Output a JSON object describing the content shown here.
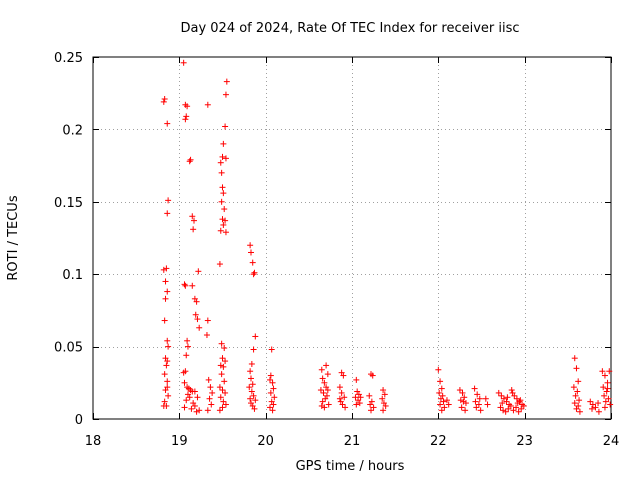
{
  "chart_data": {
    "type": "scatter",
    "title": "Day 024 of 2024, Rate Of TEC Index for receiver iisc",
    "xlabel": "GPS time / hours",
    "ylabel": "ROTI / TECUs",
    "xlim": [
      18,
      24
    ],
    "ylim": [
      0,
      0.25
    ],
    "x_ticks": [
      18,
      19,
      20,
      21,
      22,
      23,
      24
    ],
    "y_ticks": [
      0,
      0.05,
      0.1,
      0.15,
      0.2,
      0.25
    ],
    "x_tick_labels": [
      "18",
      "19",
      "20",
      "21",
      "22",
      "23",
      "24"
    ],
    "y_tick_labels": [
      "0",
      "0.05",
      "0.1",
      "0.15",
      "0.2",
      "0.25"
    ],
    "grid": true,
    "marker": "+",
    "marker_color": "#ff0000",
    "series": [
      {
        "name": "ROTI",
        "points": [
          [
            18.82,
            0.219
          ],
          [
            18.83,
            0.221
          ],
          [
            18.86,
            0.204
          ],
          [
            18.87,
            0.151
          ],
          [
            18.86,
            0.142
          ],
          [
            18.82,
            0.103
          ],
          [
            18.85,
            0.104
          ],
          [
            18.84,
            0.095
          ],
          [
            18.86,
            0.088
          ],
          [
            18.84,
            0.083
          ],
          [
            18.83,
            0.068
          ],
          [
            18.86,
            0.054
          ],
          [
            18.87,
            0.05
          ],
          [
            18.84,
            0.042
          ],
          [
            18.86,
            0.04
          ],
          [
            18.85,
            0.037
          ],
          [
            18.83,
            0.031
          ],
          [
            18.86,
            0.026
          ],
          [
            18.84,
            0.02
          ],
          [
            18.87,
            0.016
          ],
          [
            18.83,
            0.012
          ],
          [
            18.85,
            0.009
          ],
          [
            18.82,
            0.009
          ],
          [
            18.86,
            0.022
          ],
          [
            19.05,
            0.246
          ],
          [
            19.07,
            0.217
          ],
          [
            19.09,
            0.216
          ],
          [
            19.08,
            0.209
          ],
          [
            19.07,
            0.207
          ],
          [
            19.13,
            0.179
          ],
          [
            19.12,
            0.178
          ],
          [
            19.15,
            0.14
          ],
          [
            19.17,
            0.137
          ],
          [
            19.16,
            0.131
          ],
          [
            19.22,
            0.102
          ],
          [
            19.06,
            0.093
          ],
          [
            19.07,
            0.092
          ],
          [
            19.15,
            0.092
          ],
          [
            19.18,
            0.083
          ],
          [
            19.2,
            0.081
          ],
          [
            19.19,
            0.072
          ],
          [
            19.21,
            0.069
          ],
          [
            19.23,
            0.063
          ],
          [
            19.09,
            0.054
          ],
          [
            19.1,
            0.05
          ],
          [
            19.08,
            0.044
          ],
          [
            19.07,
            0.033
          ],
          [
            19.05,
            0.032
          ],
          [
            19.06,
            0.025
          ],
          [
            19.09,
            0.022
          ],
          [
            19.11,
            0.021
          ],
          [
            19.13,
            0.02
          ],
          [
            19.15,
            0.019
          ],
          [
            19.18,
            0.019
          ],
          [
            19.1,
            0.017
          ],
          [
            19.12,
            0.015
          ],
          [
            19.08,
            0.013
          ],
          [
            19.16,
            0.011
          ],
          [
            19.14,
            0.007
          ],
          [
            19.2,
            0.005
          ],
          [
            19.23,
            0.006
          ],
          [
            19.18,
            0.009
          ],
          [
            19.06,
            0.008
          ],
          [
            19.21,
            0.015
          ],
          [
            19.33,
            0.217
          ],
          [
            19.33,
            0.068
          ],
          [
            19.32,
            0.058
          ],
          [
            19.34,
            0.027
          ],
          [
            19.36,
            0.022
          ],
          [
            19.38,
            0.018
          ],
          [
            19.35,
            0.014
          ],
          [
            19.37,
            0.01
          ],
          [
            19.33,
            0.006
          ],
          [
            19.55,
            0.233
          ],
          [
            19.54,
            0.224
          ],
          [
            19.53,
            0.202
          ],
          [
            19.51,
            0.19
          ],
          [
            19.5,
            0.181
          ],
          [
            19.54,
            0.18
          ],
          [
            19.48,
            0.177
          ],
          [
            19.49,
            0.17
          ],
          [
            19.5,
            0.16
          ],
          [
            19.51,
            0.156
          ],
          [
            19.49,
            0.15
          ],
          [
            19.52,
            0.145
          ],
          [
            19.5,
            0.138
          ],
          [
            19.51,
            0.134
          ],
          [
            19.53,
            0.137
          ],
          [
            19.48,
            0.13
          ],
          [
            19.54,
            0.129
          ],
          [
            19.47,
            0.107
          ],
          [
            19.49,
            0.052
          ],
          [
            19.52,
            0.049
          ],
          [
            19.5,
            0.042
          ],
          [
            19.53,
            0.04
          ],
          [
            19.48,
            0.037
          ],
          [
            19.51,
            0.036
          ],
          [
            19.49,
            0.031
          ],
          [
            19.52,
            0.026
          ],
          [
            19.47,
            0.022
          ],
          [
            19.5,
            0.02
          ],
          [
            19.53,
            0.018
          ],
          [
            19.48,
            0.015
          ],
          [
            19.51,
            0.012
          ],
          [
            19.54,
            0.01
          ],
          [
            19.5,
            0.008
          ],
          [
            19.47,
            0.006
          ],
          [
            19.82,
            0.12
          ],
          [
            19.83,
            0.115
          ],
          [
            19.85,
            0.108
          ],
          [
            19.86,
            0.1
          ],
          [
            19.87,
            0.101
          ],
          [
            19.88,
            0.057
          ],
          [
            19.86,
            0.048
          ],
          [
            19.84,
            0.038
          ],
          [
            19.82,
            0.033
          ],
          [
            19.83,
            0.028
          ],
          [
            19.85,
            0.024
          ],
          [
            19.81,
            0.022
          ],
          [
            19.84,
            0.019
          ],
          [
            19.86,
            0.016
          ],
          [
            19.88,
            0.013
          ],
          [
            19.83,
            0.011
          ],
          [
            19.85,
            0.009
          ],
          [
            19.87,
            0.007
          ],
          [
            19.82,
            0.014
          ],
          [
            20.07,
            0.048
          ],
          [
            20.06,
            0.03
          ],
          [
            20.05,
            0.027
          ],
          [
            20.08,
            0.025
          ],
          [
            20.09,
            0.021
          ],
          [
            20.06,
            0.018
          ],
          [
            20.1,
            0.015
          ],
          [
            20.07,
            0.012
          ],
          [
            20.09,
            0.01
          ],
          [
            20.05,
            0.008
          ],
          [
            20.08,
            0.006
          ],
          [
            20.65,
            0.034
          ],
          [
            20.7,
            0.037
          ],
          [
            20.72,
            0.031
          ],
          [
            20.66,
            0.028
          ],
          [
            20.68,
            0.025
          ],
          [
            20.7,
            0.022
          ],
          [
            20.64,
            0.02
          ],
          [
            20.67,
            0.018
          ],
          [
            20.71,
            0.016
          ],
          [
            20.69,
            0.014
          ],
          [
            20.66,
            0.012
          ],
          [
            20.73,
            0.01
          ],
          [
            20.68,
            0.008
          ],
          [
            20.65,
            0.009
          ],
          [
            20.72,
            0.02
          ],
          [
            20.88,
            0.032
          ],
          [
            20.9,
            0.03
          ],
          [
            20.86,
            0.022
          ],
          [
            20.88,
            0.018
          ],
          [
            20.91,
            0.015
          ],
          [
            20.87,
            0.012
          ],
          [
            20.89,
            0.01
          ],
          [
            20.92,
            0.008
          ],
          [
            20.86,
            0.014
          ],
          [
            21.05,
            0.027
          ],
          [
            21.06,
            0.019
          ],
          [
            21.08,
            0.017
          ],
          [
            21.04,
            0.015
          ],
          [
            21.07,
            0.013
          ],
          [
            21.09,
            0.011
          ],
          [
            21.05,
            0.01
          ],
          [
            21.1,
            0.015
          ],
          [
            21.22,
            0.031
          ],
          [
            21.24,
            0.03
          ],
          [
            21.2,
            0.016
          ],
          [
            21.23,
            0.012
          ],
          [
            21.21,
            0.01
          ],
          [
            21.25,
            0.008
          ],
          [
            21.22,
            0.006
          ],
          [
            21.36,
            0.02
          ],
          [
            21.38,
            0.017
          ],
          [
            21.35,
            0.014
          ],
          [
            21.37,
            0.011
          ],
          [
            21.39,
            0.009
          ],
          [
            21.36,
            0.006
          ],
          [
            22.0,
            0.034
          ],
          [
            22.02,
            0.026
          ],
          [
            22.04,
            0.021
          ],
          [
            22.01,
            0.018
          ],
          [
            22.05,
            0.016
          ],
          [
            22.03,
            0.014
          ],
          [
            22.06,
            0.012
          ],
          [
            22.02,
            0.01
          ],
          [
            22.07,
            0.008
          ],
          [
            22.04,
            0.006
          ],
          [
            22.1,
            0.013
          ],
          [
            22.12,
            0.01
          ],
          [
            22.25,
            0.02
          ],
          [
            22.28,
            0.018
          ],
          [
            22.3,
            0.015
          ],
          [
            22.26,
            0.013
          ],
          [
            22.32,
            0.011
          ],
          [
            22.27,
            0.008
          ],
          [
            22.31,
            0.006
          ],
          [
            22.29,
            0.012
          ],
          [
            22.42,
            0.021
          ],
          [
            22.45,
            0.017
          ],
          [
            22.48,
            0.014
          ],
          [
            22.43,
            0.012
          ],
          [
            22.47,
            0.01
          ],
          [
            22.44,
            0.008
          ],
          [
            22.49,
            0.006
          ],
          [
            22.55,
            0.014
          ],
          [
            22.57,
            0.01
          ],
          [
            22.7,
            0.018
          ],
          [
            22.73,
            0.016
          ],
          [
            22.76,
            0.014
          ],
          [
            22.79,
            0.012
          ],
          [
            22.82,
            0.01
          ],
          [
            22.85,
            0.02
          ],
          [
            22.88,
            0.016
          ],
          [
            22.91,
            0.014
          ],
          [
            22.94,
            0.012
          ],
          [
            22.97,
            0.01
          ],
          [
            22.72,
            0.008
          ],
          [
            22.75,
            0.006
          ],
          [
            22.78,
            0.005
          ],
          [
            22.81,
            0.007
          ],
          [
            22.84,
            0.009
          ],
          [
            22.87,
            0.006
          ],
          [
            22.9,
            0.008
          ],
          [
            22.93,
            0.005
          ],
          [
            22.96,
            0.007
          ],
          [
            22.99,
            0.009
          ],
          [
            22.86,
            0.018
          ],
          [
            22.8,
            0.015
          ],
          [
            22.92,
            0.011
          ],
          [
            22.95,
            0.013
          ],
          [
            22.74,
            0.011
          ],
          [
            23.58,
            0.042
          ],
          [
            23.6,
            0.035
          ],
          [
            23.62,
            0.026
          ],
          [
            23.57,
            0.022
          ],
          [
            23.61,
            0.019
          ],
          [
            23.59,
            0.016
          ],
          [
            23.63,
            0.013
          ],
          [
            23.58,
            0.011
          ],
          [
            23.62,
            0.009
          ],
          [
            23.6,
            0.007
          ],
          [
            23.64,
            0.005
          ],
          [
            23.76,
            0.012
          ],
          [
            23.79,
            0.01
          ],
          [
            23.82,
            0.008
          ],
          [
            23.85,
            0.011
          ],
          [
            23.78,
            0.007
          ],
          [
            23.86,
            0.005
          ],
          [
            23.9,
            0.033
          ],
          [
            23.93,
            0.03
          ],
          [
            23.96,
            0.025
          ],
          [
            23.98,
            0.033
          ],
          [
            23.91,
            0.022
          ],
          [
            23.95,
            0.019
          ],
          [
            23.92,
            0.016
          ],
          [
            23.97,
            0.014
          ],
          [
            23.94,
            0.012
          ],
          [
            23.99,
            0.01
          ],
          [
            23.93,
            0.008
          ],
          [
            23.96,
            0.021
          ]
        ]
      }
    ]
  }
}
